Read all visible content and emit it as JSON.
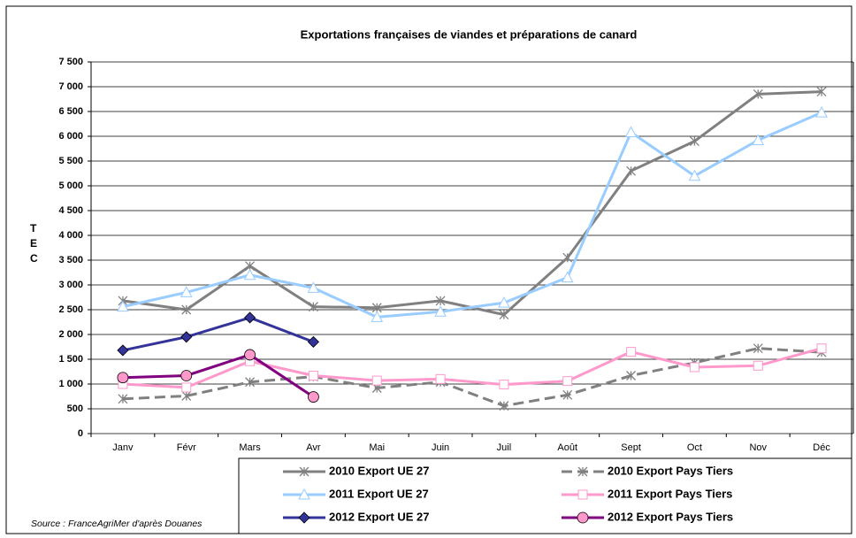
{
  "chart_data": {
    "type": "line",
    "title": "Exportations françaises de viandes et préparations de canard",
    "y_label": "TEC",
    "source": "Source : FranceAgriMer d'après Douanes",
    "categories": [
      "Janv",
      "Févr",
      "Mars",
      "Avr",
      "Mai",
      "Juin",
      "Juil",
      "Août",
      "Sept",
      "Oct",
      "Nov",
      "Déc"
    ],
    "ylim": [
      0,
      7500
    ],
    "yticks": [
      0,
      500,
      {
        "value": 1000,
        "label": "1 000"
      },
      {
        "value": 1500,
        "label": "1 500"
      },
      {
        "value": 2000,
        "label": "2 000"
      },
      {
        "value": 2500,
        "label": "2 500"
      },
      {
        "value": 3000,
        "label": "3 000"
      },
      {
        "value": 3500,
        "label": "3 500"
      },
      {
        "value": 4000,
        "label": "4 000"
      },
      {
        "value": 4500,
        "label": "4 500"
      },
      {
        "value": 5000,
        "label": "5 000"
      },
      {
        "value": 5500,
        "label": "5 500"
      },
      {
        "value": 6000,
        "label": "6 000"
      },
      {
        "value": 6500,
        "label": "6 500"
      },
      {
        "value": 7000,
        "label": "7 000"
      },
      {
        "value": 7500,
        "label": "7 500"
      }
    ],
    "grid": true,
    "legend": "bottom",
    "series": [
      {
        "name": "2010 Export UE 27",
        "color": "#808080",
        "marker": "asterisk",
        "dashed": false,
        "values": [
          2680,
          2500,
          3380,
          2560,
          2540,
          2680,
          2400,
          3550,
          5300,
          5900,
          6850,
          6900
        ]
      },
      {
        "name": "2010 Export Pays Tiers",
        "color": "#808080",
        "marker": "asterisk",
        "dashed": true,
        "values": [
          700,
          760,
          1040,
          1150,
          920,
          1040,
          560,
          780,
          1170,
          1430,
          1720,
          1640
        ]
      },
      {
        "name": "2011 Export UE 27",
        "color": "#99ccff",
        "marker": "triangle",
        "dashed": false,
        "values": [
          2560,
          2850,
          3200,
          2940,
          2350,
          2460,
          2640,
          3150,
          6080,
          5200,
          5920,
          6480
        ]
      },
      {
        "name": "2011 Export Pays Tiers",
        "color": "#ff99cc",
        "marker": "square",
        "dashed": false,
        "values": [
          1000,
          930,
          1460,
          1170,
          1070,
          1100,
          990,
          1060,
          1650,
          1340,
          1370,
          1720
        ]
      },
      {
        "name": "2012 Export UE 27",
        "color": "#333399",
        "marker": "diamond",
        "dashed": false,
        "values": [
          1680,
          1950,
          2340,
          1850,
          null,
          null,
          null,
          null,
          null,
          null,
          null,
          null
        ]
      },
      {
        "name": "2012 Export Pays Tiers",
        "color": "#800080",
        "marker": "circle",
        "dashed": false,
        "values": [
          1130,
          1170,
          1590,
          740,
          null,
          null,
          null,
          null,
          null,
          null,
          null,
          null
        ]
      }
    ]
  }
}
